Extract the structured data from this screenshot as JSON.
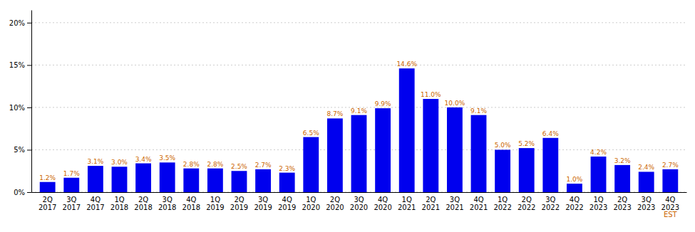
{
  "chart_data": {
    "type": "bar",
    "categories": [
      "2Q\n2017",
      "3Q\n2017",
      "4Q\n2017",
      "1Q\n2018",
      "2Q\n2018",
      "3Q\n2018",
      "4Q\n2018",
      "1Q\n2019",
      "2Q\n2019",
      "3Q\n2019",
      "4Q\n2019",
      "1Q\n2020",
      "2Q\n2020",
      "3Q\n2020",
      "4Q\n2020",
      "1Q\n2021",
      "2Q\n2021",
      "3Q\n2021",
      "4Q\n2021",
      "1Q\n2022",
      "2Q\n2022",
      "3Q\n2022",
      "4Q\n2022",
      "1Q\n2023",
      "2Q\n2023",
      "3Q\n2023",
      "4Q\n2023"
    ],
    "values": [
      1.2,
      1.7,
      3.1,
      3.0,
      3.4,
      3.5,
      2.8,
      2.8,
      2.5,
      2.7,
      2.3,
      6.5,
      8.7,
      9.1,
      9.9,
      14.6,
      11.0,
      10.0,
      9.1,
      5.0,
      5.2,
      6.4,
      1.0,
      4.2,
      3.2,
      2.4,
      2.7
    ],
    "value_labels": [
      "1.2%",
      "1.7%",
      "3.1%",
      "3.0%",
      "3.4%",
      "3.5%",
      "2.8%",
      "2.8%",
      "2.5%",
      "2.7%",
      "2.3%",
      "6.5%",
      "8.7%",
      "9.1%",
      "9.9%",
      "14.6%",
      "11.0%",
      "10.0%",
      "9.1%",
      "5.0%",
      "5.2%",
      "6.4%",
      "1.0%",
      "4.2%",
      "3.2%",
      "2.4%",
      "2.7%"
    ],
    "data_labels": true,
    "color": "#0000EE",
    "ylim": [
      0,
      21.5
    ],
    "yticks": [
      {
        "value": 0,
        "label": "0%"
      },
      {
        "value": 5,
        "label": "5%"
      },
      {
        "value": 10,
        "label": "10%"
      },
      {
        "value": 15,
        "label": "15%"
      },
      {
        "value": 20,
        "label": "20%"
      }
    ],
    "grid": true,
    "annotations": [
      {
        "text": "EST",
        "category": "4Q\n2023"
      }
    ]
  }
}
